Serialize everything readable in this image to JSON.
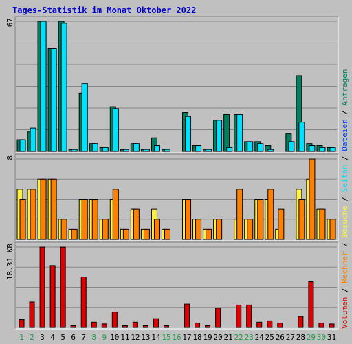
{
  "title": "Tages-Statistik im Monat Oktober 2022",
  "colors": {
    "background": "#c0c0c0",
    "title": "#0000cc",
    "anfragen": "#007f60",
    "dateien": "#00e0ff",
    "seiten": "#fff040",
    "besuche": "#ff8000",
    "volumen": "#e00000",
    "weekday_label": "#000000",
    "weekend_label": "#1e9e4a"
  },
  "chart_data": {
    "type": "bar",
    "days": [
      "1",
      "2",
      "3",
      "4",
      "5",
      "6",
      "7",
      "8",
      "9",
      "10",
      "11",
      "12",
      "13",
      "14",
      "15",
      "16",
      "17",
      "18",
      "19",
      "20",
      "21",
      "22",
      "23",
      "24",
      "25",
      "26",
      "27",
      "28",
      "29",
      "30",
      "31"
    ],
    "weekend_days": [
      "1",
      "2",
      "8",
      "9",
      "15",
      "16",
      "22",
      "23",
      "29",
      "30"
    ],
    "panels": [
      {
        "id": "requests",
        "max_label": "67",
        "ymax": 67,
        "series": [
          {
            "name": "Anfragen",
            "values": [
              6,
              10,
              67,
              53,
              67,
              1,
              30,
              4,
              2,
              23,
              1,
              4,
              1,
              7,
              1,
              0,
              20,
              3,
              1,
              16,
              19,
              19,
              5,
              5,
              3,
              0,
              9,
              39,
              4,
              3,
              2
            ]
          },
          {
            "name": "Dateien",
            "values": [
              6,
              12,
              67,
              53,
              66,
              1,
              35,
              4,
              2,
              22,
              1,
              4,
              1,
              3,
              1,
              0,
              18,
              3,
              1,
              16,
              2,
              19,
              5,
              4,
              1,
              0,
              5,
              15,
              3,
              2,
              2
            ]
          }
        ]
      },
      {
        "id": "visits",
        "max_label": "8",
        "ymax": 8,
        "series": [
          {
            "name": "Seiten",
            "values": [
              5,
              5,
              6,
              6,
              2,
              1,
              4,
              4,
              2,
              4,
              1,
              3,
              1,
              3,
              1,
              0,
              4,
              2,
              1,
              2,
              0,
              2,
              2,
              4,
              4,
              1,
              0,
              5,
              6,
              3,
              2
            ]
          },
          {
            "name": "Besuche",
            "values": [
              4,
              5,
              6,
              6,
              2,
              1,
              4,
              4,
              2,
              5,
              1,
              3,
              1,
              2,
              1,
              0,
              4,
              2,
              1,
              2,
              0,
              5,
              2,
              4,
              5,
              3,
              0,
              4,
              8,
              3,
              2
            ]
          }
        ]
      },
      {
        "id": "volume",
        "max_label": "18.31 KB",
        "ymax": 18.31,
        "series": [
          {
            "name": "Volumen",
            "values": [
              1.8,
              5.8,
              18.3,
              14.1,
              18.3,
              0.4,
              11.5,
              1.2,
              0.8,
              3.5,
              0.4,
              1.2,
              0.4,
              2.0,
              0.4,
              0,
              5.3,
              1.0,
              0.4,
              4.4,
              0,
              5.1,
              5.1,
              1.2,
              1.5,
              1.0,
              0,
              2.5,
              10.4,
              1.0,
              0.8
            ]
          }
        ]
      }
    ],
    "legend": [
      "Volumen",
      "/",
      "Rechner",
      "/",
      "Besuche",
      "/",
      "Seiten",
      "/",
      "Dateien",
      "/",
      "Anfragen"
    ]
  }
}
